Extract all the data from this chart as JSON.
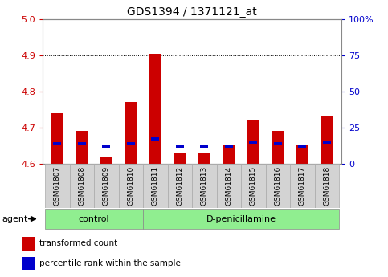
{
  "title": "GDS1394 / 1371121_at",
  "samples": [
    "GSM61807",
    "GSM61808",
    "GSM61809",
    "GSM61810",
    "GSM61811",
    "GSM61812",
    "GSM61813",
    "GSM61814",
    "GSM61815",
    "GSM61816",
    "GSM61817",
    "GSM61818"
  ],
  "red_values": [
    4.74,
    4.69,
    4.62,
    4.77,
    4.905,
    4.63,
    4.63,
    4.65,
    4.72,
    4.69,
    4.65,
    4.73
  ],
  "blue_values": [
    4.655,
    4.655,
    4.648,
    4.655,
    4.668,
    4.648,
    4.648,
    4.648,
    4.658,
    4.655,
    4.648,
    4.658
  ],
  "blue_heights": [
    0.007,
    0.007,
    0.007,
    0.007,
    0.007,
    0.007,
    0.007,
    0.007,
    0.007,
    0.007,
    0.007,
    0.007
  ],
  "ymin": 4.6,
  "ymax": 5.0,
  "y2min": 0,
  "y2max": 100,
  "yticks": [
    4.6,
    4.7,
    4.8,
    4.9,
    5.0
  ],
  "y2ticks": [
    0,
    25,
    50,
    75,
    100
  ],
  "y2ticklabels": [
    "0",
    "25",
    "50",
    "75",
    "100%"
  ],
  "bar_color_red": "#cc0000",
  "bar_color_blue": "#0000cc",
  "green_color": "#90ee90",
  "gray_cell_color": "#d3d3d3",
  "gray_cell_edge": "#aaaaaa",
  "control_label": "control",
  "treatment_label": "D-penicillamine",
  "agent_label": "agent",
  "legend_red": "transformed count",
  "legend_blue": "percentile rank within the sample",
  "bar_width": 0.5,
  "n_control": 4,
  "n_treatment": 8
}
